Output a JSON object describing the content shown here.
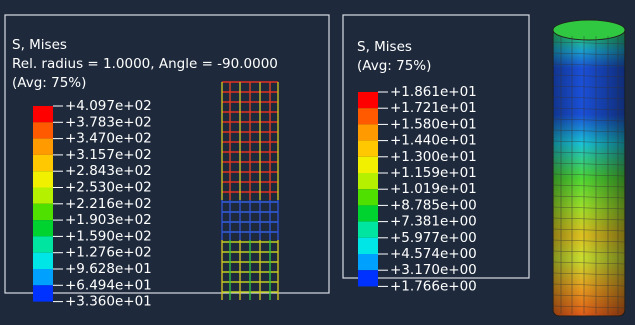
{
  "left_panel": {
    "lines": [
      "S, Mises",
      "Rel. radius = 1.0000, Angle = -90.0000",
      "(Avg: 75%)"
    ],
    "legend": [
      "+4.097e+02",
      "+3.783e+02",
      "+3.470e+02",
      "+3.157e+02",
      "+2.843e+02",
      "+2.530e+02",
      "+2.216e+02",
      "+1.903e+02",
      "+1.590e+02",
      "+1.276e+02",
      "+9.628e+01",
      "+6.494e+01",
      "+3.360e+01"
    ]
  },
  "right_panel": {
    "lines": [
      "S, Mises",
      "(Avg: 75%)"
    ],
    "legend": [
      "+1.861e+01",
      "+1.721e+01",
      "+1.580e+01",
      "+1.440e+01",
      "+1.300e+01",
      "+1.159e+01",
      "+1.019e+01",
      "+8.785e+00",
      "+7.381e+00",
      "+5.977e+00",
      "+4.574e+00",
      "+3.170e+00",
      "+1.766e+00"
    ]
  }
}
